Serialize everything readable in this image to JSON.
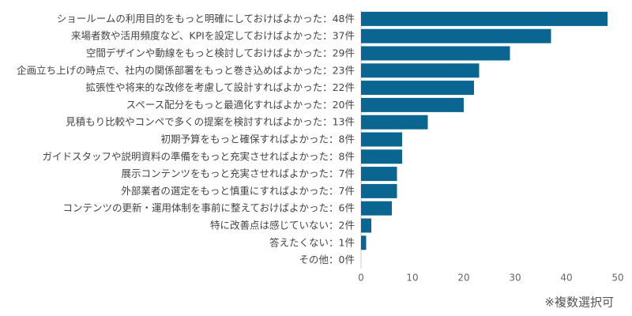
{
  "chart_data": {
    "type": "bar",
    "orientation": "horizontal",
    "categories": [
      "ショールームの利用目的をもっと明確にしておけばよかった：",
      "来場者数や活用頻度など、KPIを設定しておけばよかった：",
      "空間デザインや動線をもっと検討しておけばよかった：",
      "企画立ち上げの時点で、社内の関係部署をもっと巻き込めばよかった：",
      "拡張性や将来的な改修を考慮して設計すればよかった：",
      "スペース配分をもっと最適化すればよかった：",
      "見積もり比較やコンペで多くの提案を検討すればよかった：",
      "初期予算をもっと確保すればよかった：",
      "ガイドスタッフや説明資料の準備をもっと充実させればよかった：",
      "展示コンテンツをもっと充実させればよかった：",
      "外部業者の選定をもっと慎重にすればよかった：",
      "コンテンツの更新・運用体制を事前に整えておけばよかった：",
      "特に改善点は感じていない：",
      "答えたくない：",
      "その他："
    ],
    "values": [
      48,
      37,
      29,
      23,
      22,
      20,
      13,
      8,
      8,
      7,
      7,
      6,
      2,
      1,
      0
    ],
    "value_labels": [
      "48件",
      "37件",
      "29件",
      "23件",
      "22件",
      "20件",
      "13件",
      "8件",
      "8件",
      "7件",
      "7件",
      "6件",
      "2件",
      "1件",
      "0件"
    ],
    "color": "#0a6690",
    "xlim": [
      0,
      50
    ],
    "xticks": [
      0,
      10,
      20,
      30,
      40,
      50
    ],
    "grid": false,
    "note": "※複数選択可"
  }
}
